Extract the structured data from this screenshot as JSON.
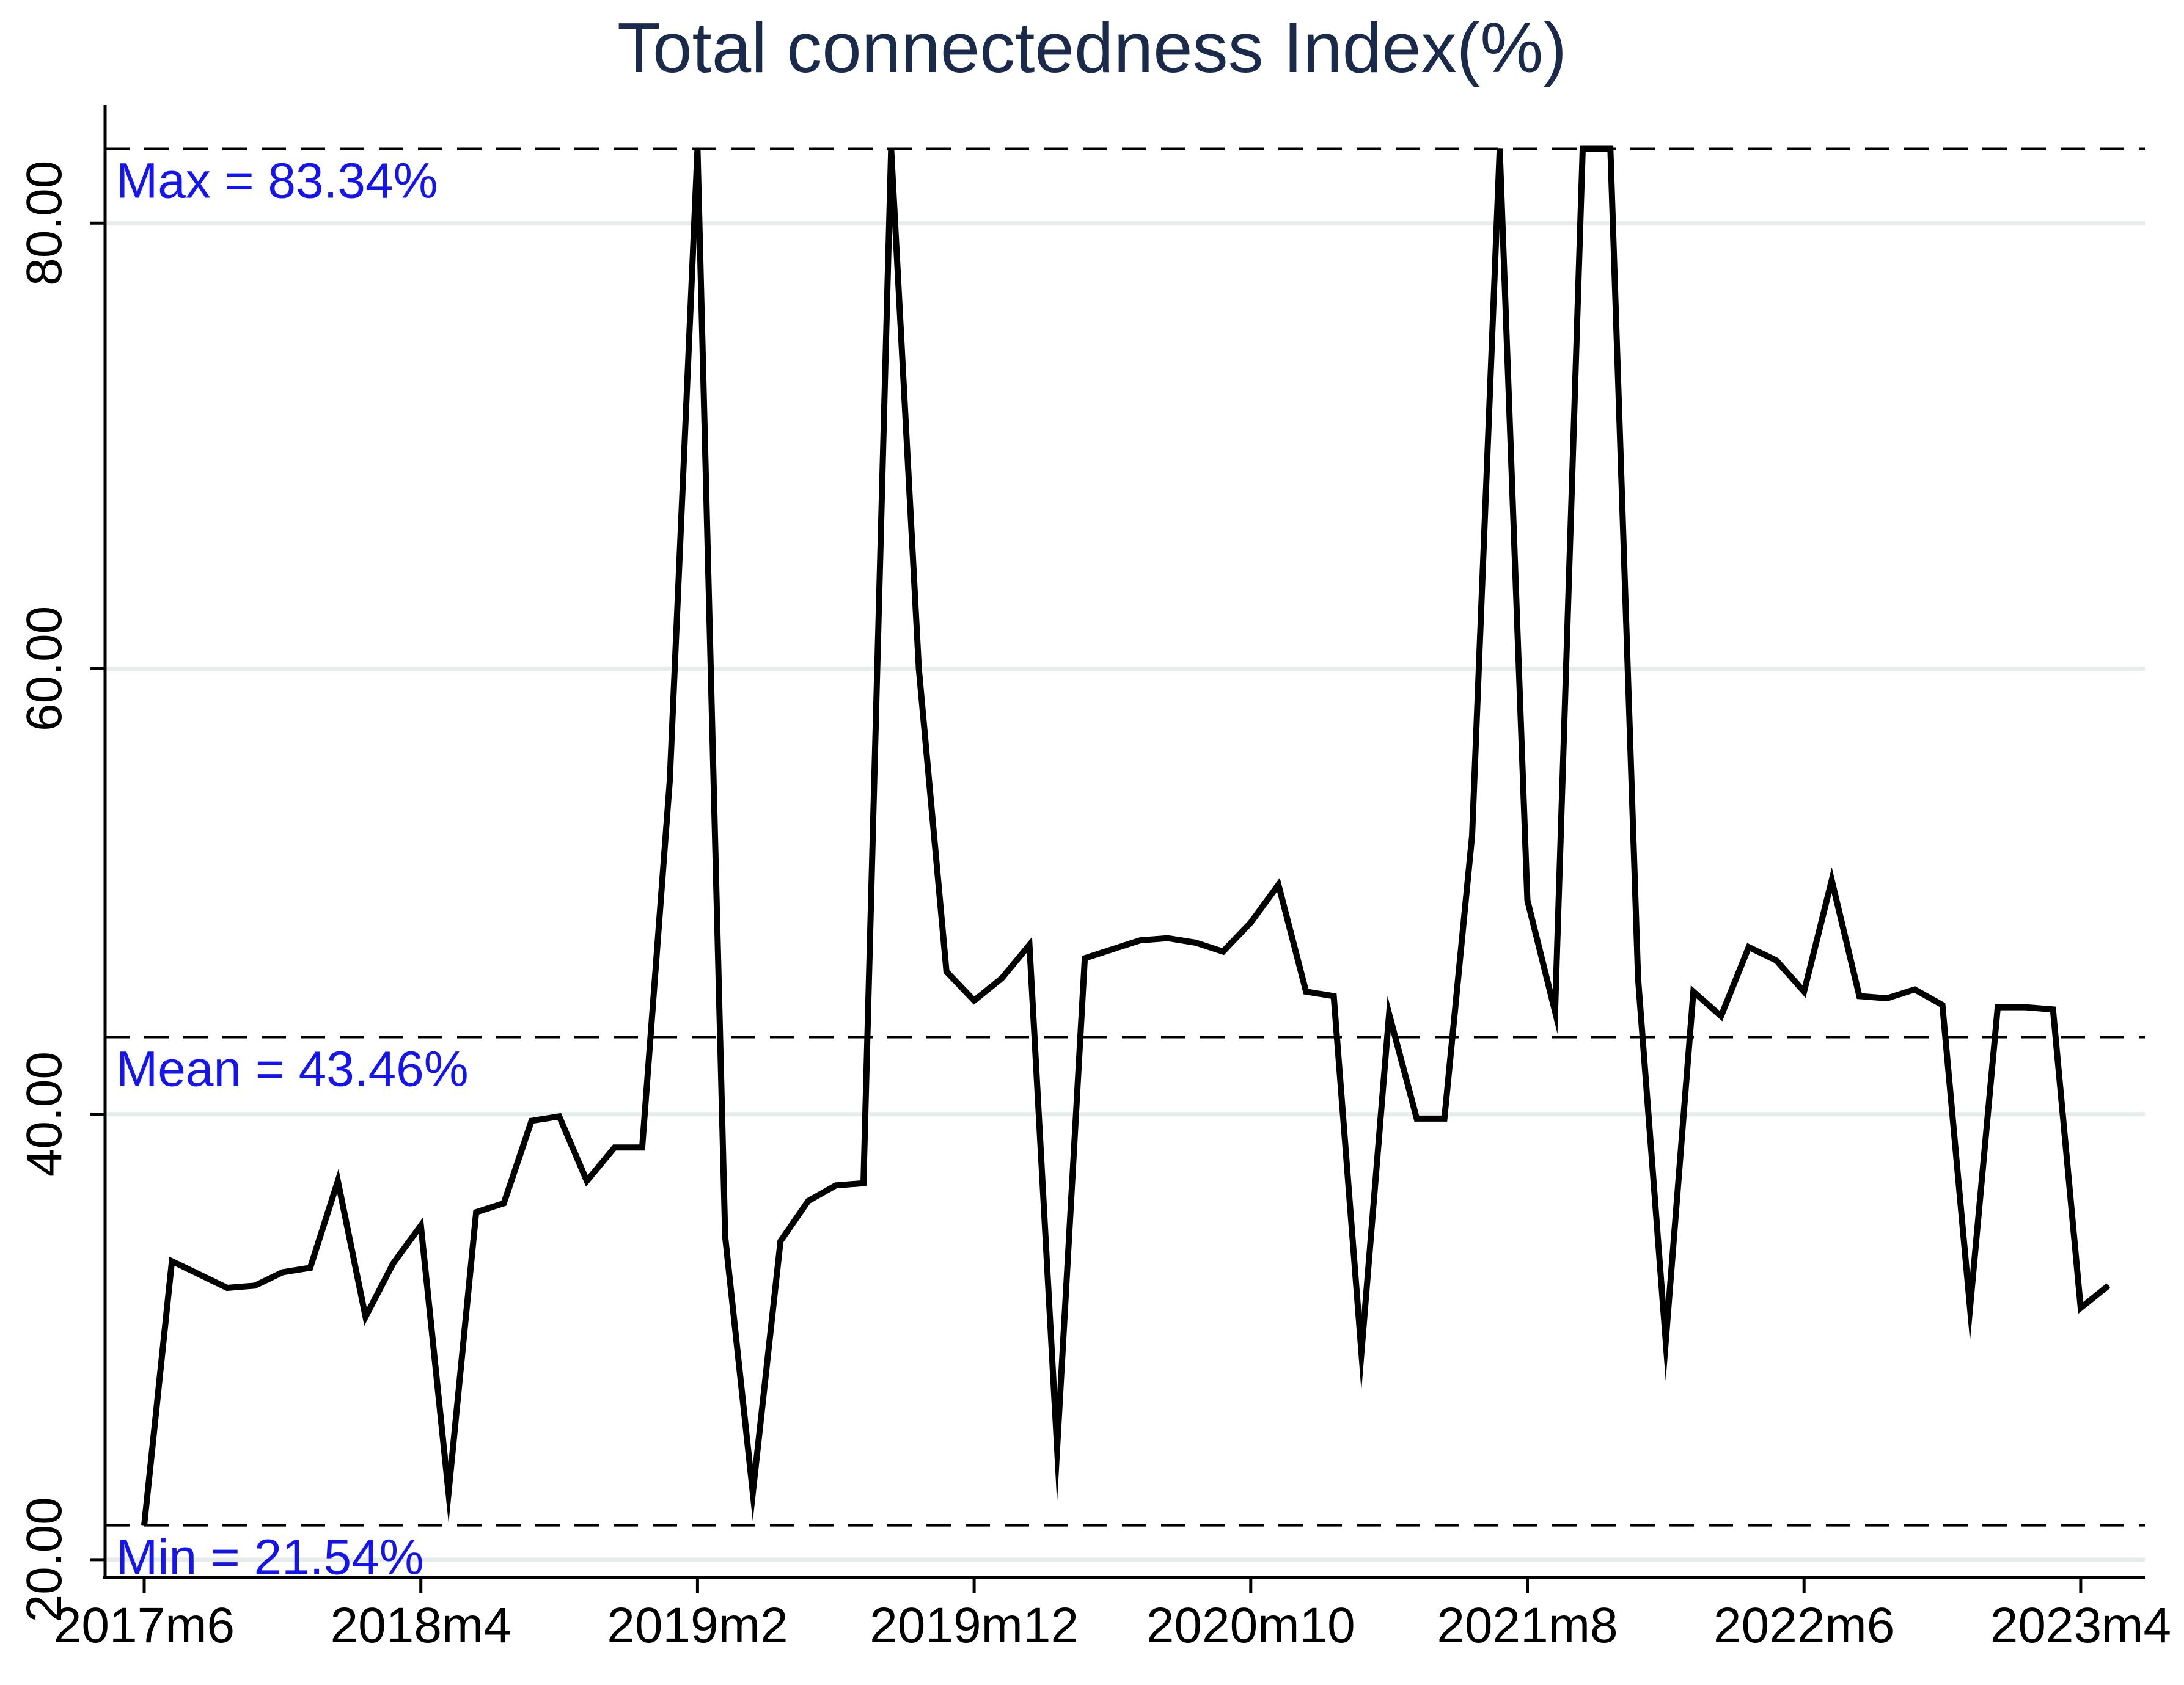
{
  "chart_data": {
    "type": "line",
    "title": "Total connectedness Index(%)",
    "xlabel": "",
    "ylabel": "",
    "x_tick_labels": [
      "2017m6",
      "2018m4",
      "2019m2",
      "2019m12",
      "2020m10",
      "2021m8",
      "2022m6",
      "2023m4"
    ],
    "y_tick_labels": [
      "20.00",
      "40.00",
      "60.00",
      "80.00"
    ],
    "y_ticks": [
      20,
      40,
      60,
      80
    ],
    "ylim": [
      19.2,
      85.3
    ],
    "grid": true,
    "reference_lines": [
      {
        "label": "Max = 83.34%",
        "value": 83.34
      },
      {
        "label": "Mean = 43.46%",
        "value": 43.46
      },
      {
        "label": "Min = 21.54%",
        "value": 21.54
      }
    ],
    "start_period": "2017m6",
    "series": [
      {
        "values": [
          21.54,
          33.4,
          32.8,
          32.2,
          32.3,
          32.9,
          33.1,
          37.0,
          30.9,
          33.3,
          35.0,
          23.0,
          35.6,
          36.0,
          39.7,
          39.9,
          37.0,
          38.5,
          38.5,
          55.0,
          83.34,
          34.5,
          23.0,
          34.3,
          36.1,
          36.8,
          36.9,
          83.34,
          60.0,
          46.4,
          45.1,
          46.1,
          47.6,
          25.0,
          47.0,
          47.4,
          47.8,
          47.9,
          47.7,
          47.3,
          48.6,
          50.3,
          45.5,
          45.3,
          29.3,
          44.5,
          39.8,
          39.8,
          52.5,
          83.34,
          49.6,
          44.6,
          83.34,
          83.34,
          46.1,
          29.8,
          45.5,
          44.4,
          47.5,
          46.9,
          45.5,
          50.5,
          45.3,
          45.2,
          45.6,
          44.9,
          31.3,
          44.8,
          44.8,
          44.7,
          31.3,
          32.3
        ]
      }
    ]
  }
}
